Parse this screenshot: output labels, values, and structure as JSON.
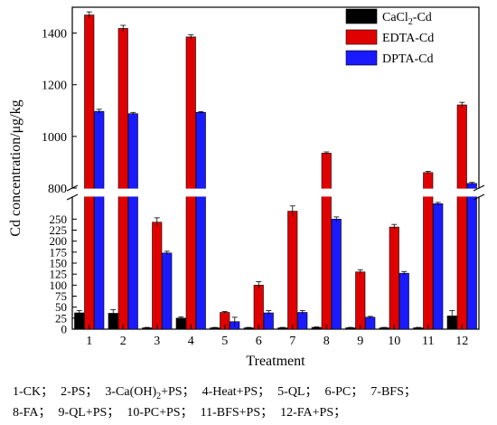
{
  "chart_data": {
    "type": "bar",
    "xlabel": "Treatment",
    "ylabel": "Cd concentration/μg/kg",
    "categories": [
      "1",
      "2",
      "3",
      "4",
      "5",
      "6",
      "7",
      "8",
      "9",
      "10",
      "11",
      "12"
    ],
    "axis_break": {
      "lower_range": [
        0,
        300
      ],
      "upper_range": [
        800,
        1500
      ]
    },
    "yticks_lower": [
      "0",
      "25",
      "50",
      "75",
      "100",
      "125",
      "150",
      "175",
      "200",
      "225",
      "250"
    ],
    "yticks_upper": [
      "800",
      "1000",
      "1200",
      "1400"
    ],
    "legend_position": "top-right",
    "series": [
      {
        "name": "CaCl2-Cd",
        "color": "#000000",
        "values": [
          37,
          36,
          3,
          25,
          3,
          3,
          3,
          4,
          3,
          3,
          3,
          30
        ],
        "errors": [
          5,
          8,
          1,
          3,
          1,
          1,
          1,
          1,
          1,
          1,
          1,
          12
        ]
      },
      {
        "name": "EDTA-Cd",
        "color": "#e00000",
        "values": [
          1470,
          1418,
          243,
          1385,
          38,
          100,
          268,
          935,
          130,
          232,
          860,
          1122
        ],
        "errors": [
          12,
          12,
          10,
          8,
          2,
          8,
          12,
          5,
          5,
          6,
          5,
          10
        ]
      },
      {
        "name": "DPTA-Cd",
        "color": "#1a1aff",
        "values": [
          1097,
          1088,
          173,
          1093,
          17,
          37,
          38,
          250,
          27,
          127,
          285,
          818
        ],
        "errors": [
          8,
          5,
          4,
          3,
          10,
          5,
          4,
          5,
          2,
          4,
          3,
          4
        ]
      }
    ]
  },
  "legend": {
    "items": [
      {
        "base": "CaCl",
        "sub": "2",
        "rest": "-Cd"
      },
      {
        "base": "EDTA-Cd",
        "sub": "",
        "rest": ""
      },
      {
        "base": "DPTA-Cd",
        "sub": "",
        "rest": ""
      }
    ]
  },
  "caption": {
    "line1": [
      {
        "t": "1-CK；"
      },
      {
        "t": "2-PS；"
      },
      {
        "t": "3-Ca(OH)",
        "sub": "2",
        "rest": "+PS；"
      },
      {
        "t": "4-Heat+PS；"
      },
      {
        "t": "5-QL；"
      },
      {
        "t": "6-PC；"
      },
      {
        "t": "7-BFS；"
      }
    ],
    "line2": [
      {
        "t": "8-FA；"
      },
      {
        "t": "9-QL+PS；"
      },
      {
        "t": "10-PC+PS；"
      },
      {
        "t": "11-BFS+PS；"
      },
      {
        "t": "12-FA+PS；"
      }
    ]
  }
}
